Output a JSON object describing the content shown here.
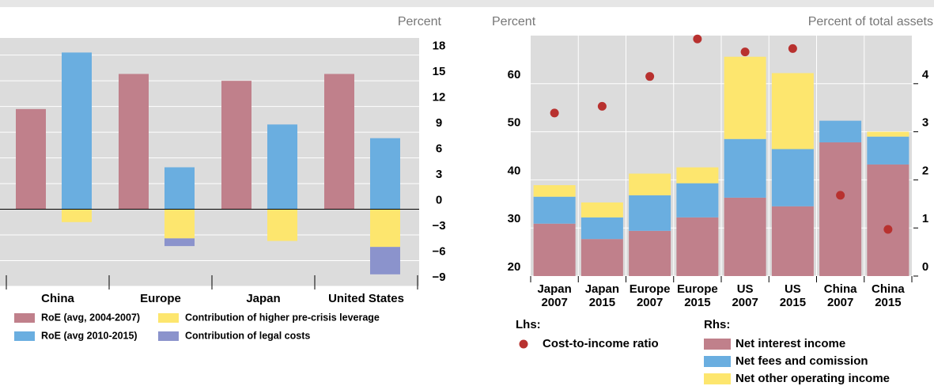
{
  "chart_data": [
    {
      "type": "bar",
      "axis_label": "Percent",
      "categories": [
        "China",
        "Europe",
        "Japan",
        "United States"
      ],
      "series": [
        {
          "name": "RoE (avg, 2004-2007)",
          "color": "#c0808b",
          "values": [
            11.7,
            15.8,
            15.0,
            15.8
          ]
        },
        {
          "name": "RoE (avg 2010-2015)",
          "color": "#6aaee0",
          "values": [
            18.3,
            4.9,
            9.9,
            8.3
          ]
        },
        {
          "name": "Contribution of higher pre-crisis leverage",
          "color": "#fde66e",
          "values": [
            -1.5,
            -3.4,
            -3.7,
            -4.4
          ]
        },
        {
          "name": "Contribution of legal costs",
          "color": "#8b93cc",
          "values": [
            0,
            -0.9,
            0,
            -3.2
          ]
        }
      ],
      "ylim": [
        -9,
        20
      ],
      "yticks": [
        18,
        15,
        12,
        9,
        6,
        3,
        0,
        {
          "value": -3,
          "label": "−3"
        },
        {
          "value": -6,
          "label": "−6"
        },
        {
          "value": -9,
          "label": "−9"
        }
      ],
      "grid": true
    },
    {
      "type": "stacked_bar",
      "axis_label": "Percent",
      "axis2_label": "Percent of total assets",
      "legend_lhs": "Lhs:",
      "legend_rhs": "Rhs:",
      "categories": [
        [
          "Japan",
          "2007"
        ],
        [
          "Japan",
          "2015"
        ],
        [
          "Europe",
          "2007"
        ],
        [
          "Europe",
          "2015"
        ],
        [
          "US",
          "2007"
        ],
        [
          "US",
          "2015"
        ],
        [
          "China",
          "2007"
        ],
        [
          "China",
          "2015"
        ]
      ],
      "series": [
        {
          "name": "Cost-to-income ratio",
          "type": "scatter",
          "color": "#b8312f",
          "values": [
            53.9,
            55.3,
            61.5,
            69.3,
            66.6,
            67.3,
            36.8,
            29.7
          ]
        },
        {
          "name": "Net interest income",
          "axis": "y2",
          "color": "#c0808b",
          "values": [
            1.09,
            0.77,
            0.94,
            1.22,
            1.63,
            1.45,
            2.78,
            2.32
          ]
        },
        {
          "name": "Net fees and comission",
          "axis": "y2",
          "color": "#6aaee0",
          "values": [
            0.56,
            0.45,
            0.74,
            0.71,
            1.22,
            1.19,
            0.45,
            0.58
          ]
        },
        {
          "name": "Net other operating income",
          "axis": "y2",
          "color": "#fde66e",
          "values": [
            0.24,
            0.31,
            0.45,
            0.33,
            1.71,
            1.58,
            0,
            0.1
          ]
        }
      ],
      "ylim": [
        20,
        70
      ],
      "yticks": [
        20,
        30,
        40,
        50,
        60
      ],
      "y2lim": [
        0,
        5
      ],
      "y2ticks": [
        0,
        1,
        2,
        3,
        4
      ],
      "grid": true
    }
  ]
}
